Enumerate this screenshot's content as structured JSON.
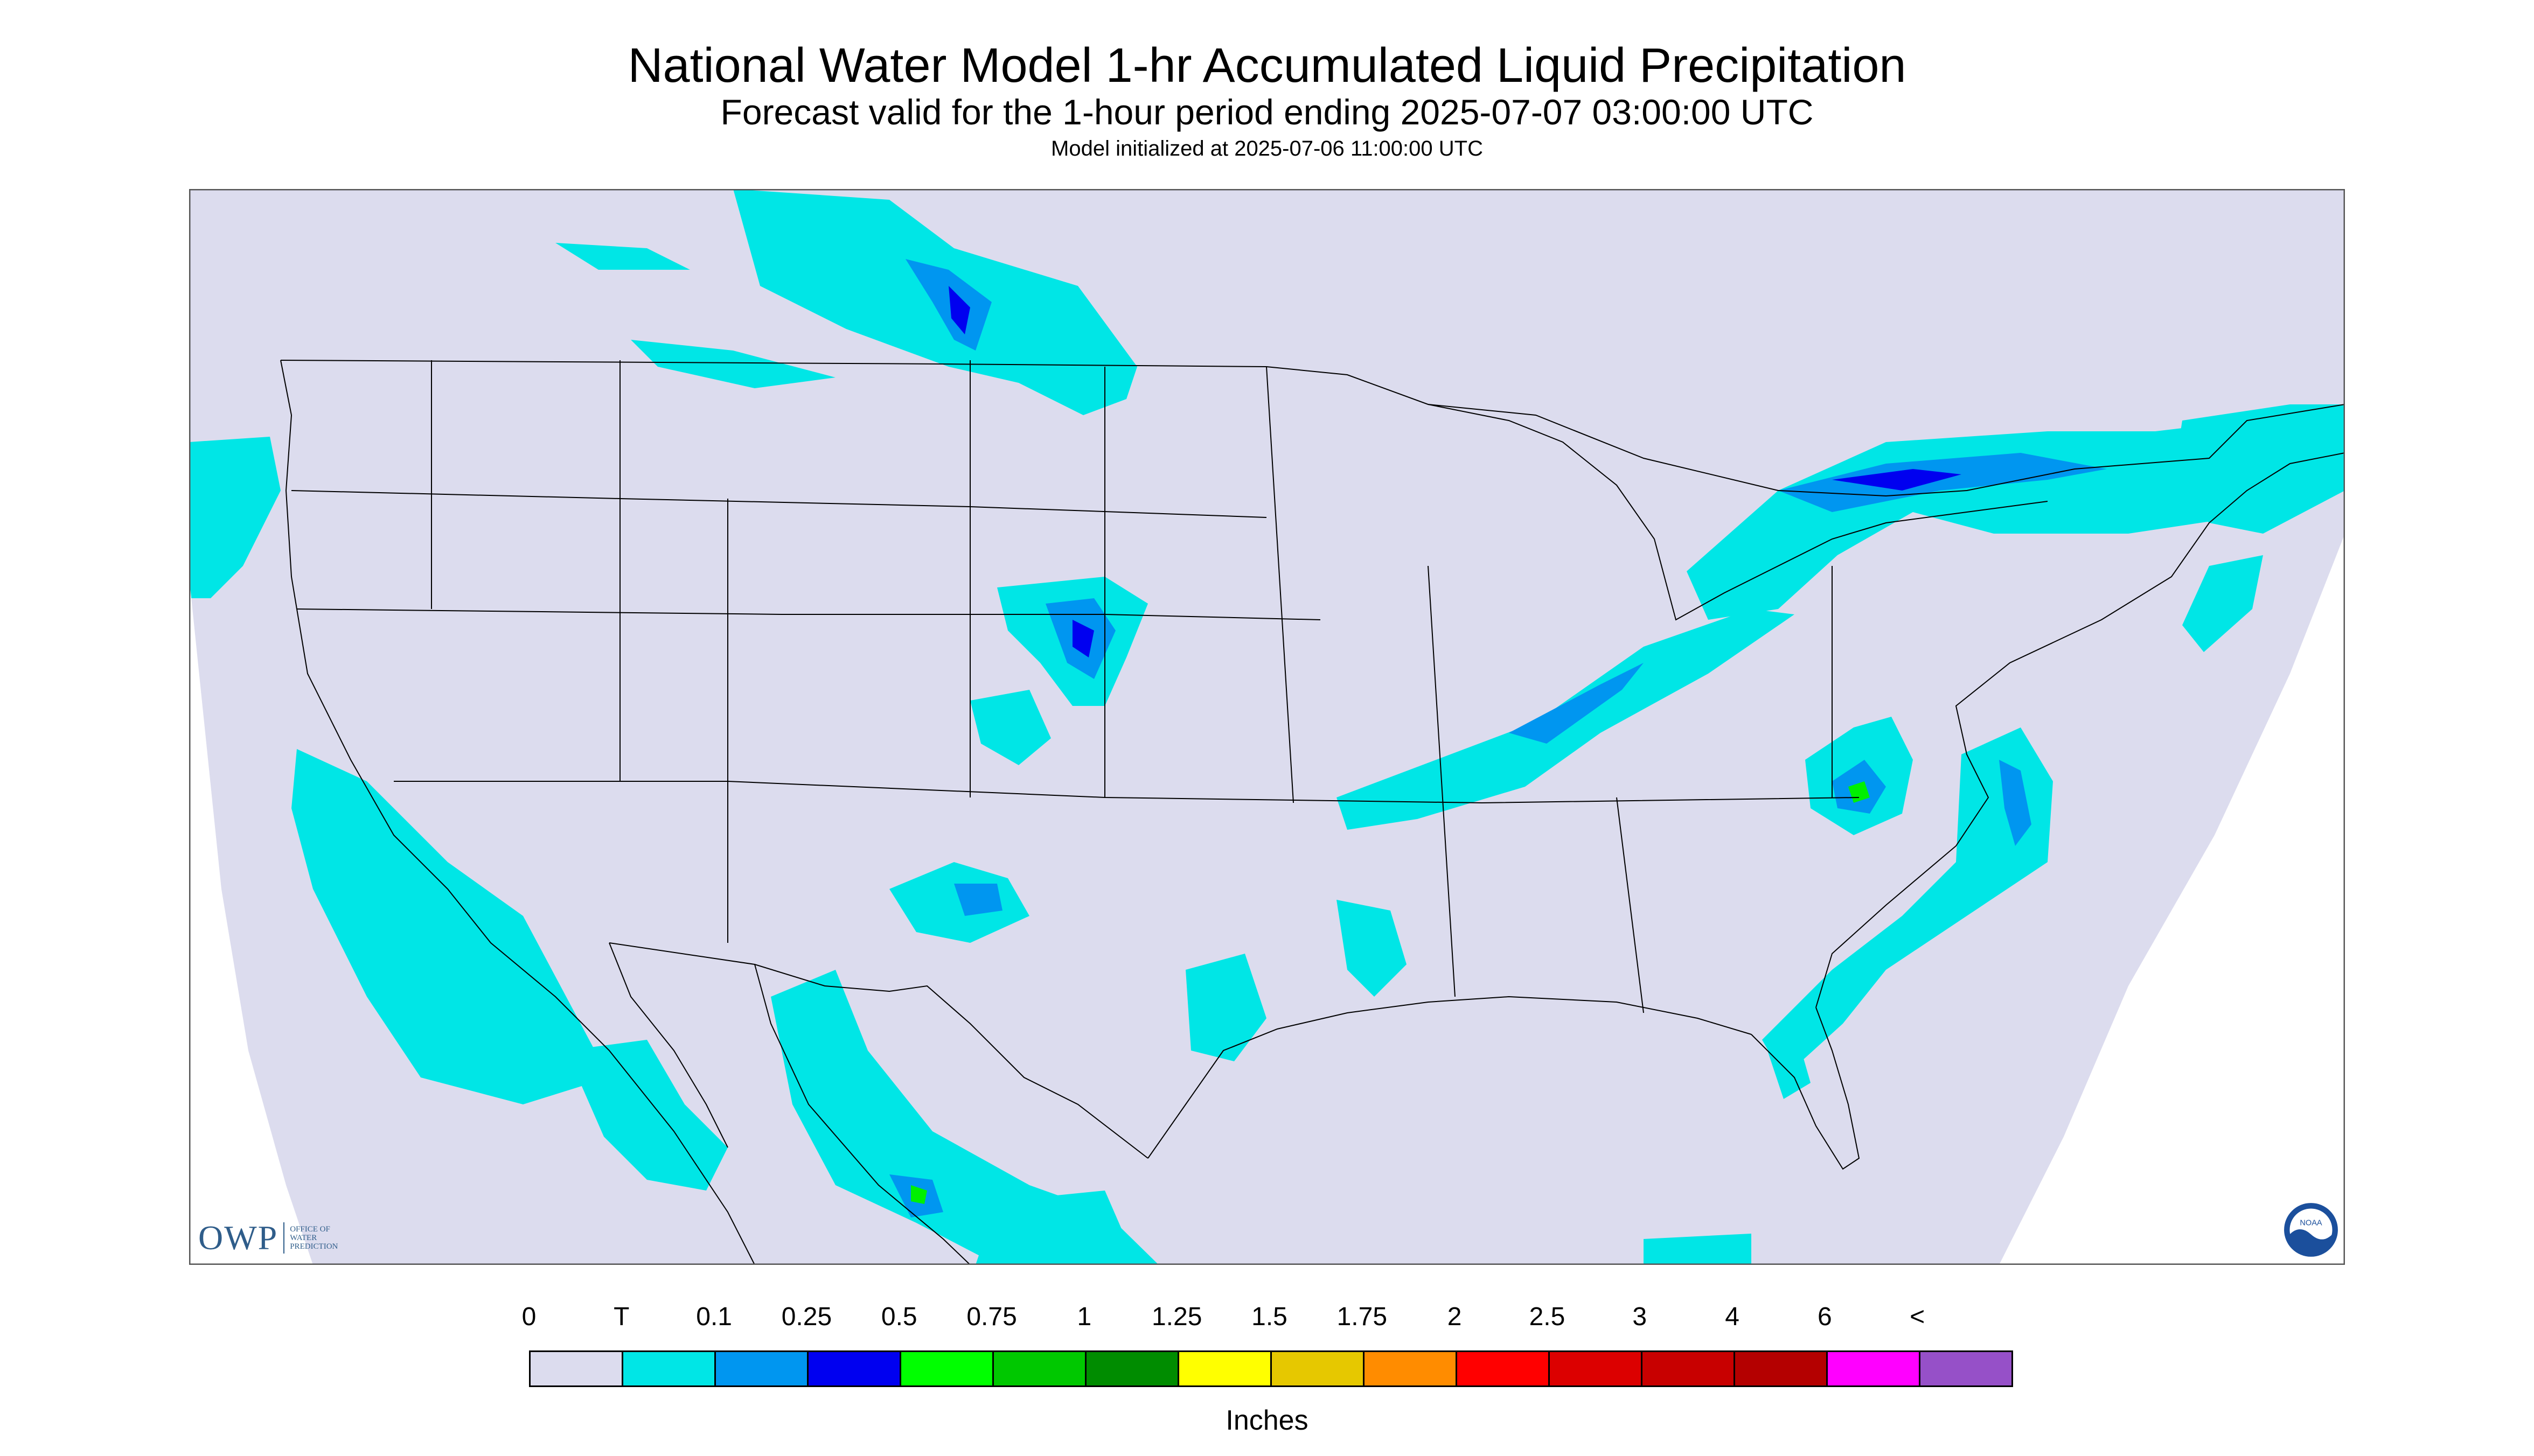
{
  "header": {
    "title": "National Water Model 1-hr Accumulated Liquid Precipitation",
    "subtitle": "Forecast valid for the 1-hour period ending 2025-07-07 03:00:00 UTC",
    "init": "Model initialized at 2025-07-06 11:00:00 UTC"
  },
  "map": {
    "background_color": "#dcdcee",
    "outside_color": "#ffffff",
    "boundary_color": "#000000",
    "colors": {
      "trace": "#00e6e6",
      "light": "#0096f0",
      "moderate": "#0000f0",
      "heavy": "#00f000"
    }
  },
  "logo": {
    "owp": "OWP",
    "owp_sub": "OFFICE OF WATER PREDICTION",
    "noaa": "NOAA"
  },
  "legend": {
    "labels": [
      "0",
      "T",
      "0.1",
      "0.25",
      "0.5",
      "0.75",
      "1",
      "1.25",
      "1.5",
      "1.75",
      "2",
      "2.5",
      "3",
      "4",
      "6",
      "<"
    ],
    "colors": [
      "#dcdcee",
      "#00e6e6",
      "#0096f0",
      "#0000f0",
      "#00ff00",
      "#00c800",
      "#008c00",
      "#ffff00",
      "#e6c800",
      "#ff8c00",
      "#ff0000",
      "#dc0000",
      "#c80000",
      "#b40000",
      "#ff00ff",
      "#9650c8"
    ],
    "units": "Inches"
  }
}
